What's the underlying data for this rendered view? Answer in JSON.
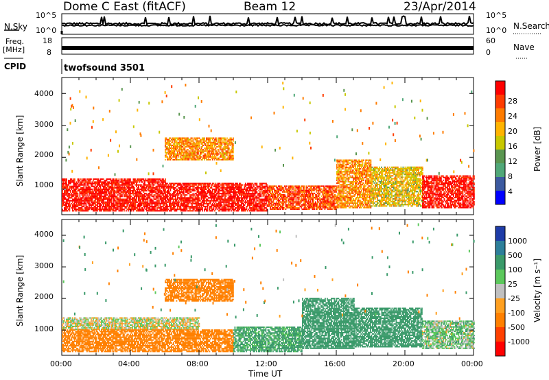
{
  "header": {
    "station": "Dome C East (fitACF)",
    "beam": "Beam 12",
    "date": "23/Apr/2014"
  },
  "strips": {
    "nsky_label": "N.Sky",
    "nsky_ticks": [
      "10^5",
      "10^0"
    ],
    "nsearch_label": "N.Search",
    "nsearch_ticks": [
      "10^5",
      "10^0"
    ],
    "freq_label": "Freq.",
    "freq_unit": "[MHz]",
    "freq_ticks": [
      "18",
      "8"
    ],
    "nave_label": "Nave",
    "nave_ticks": [
      "60",
      "0"
    ],
    "cpid_label": "CPID",
    "cpid_value": "twofsound 3501"
  },
  "power_colorbar": {
    "title": "Power [dB]",
    "ticks": [
      "28",
      "24",
      "20",
      "16",
      "12",
      "8",
      "4"
    ],
    "colors": [
      "#ff0000",
      "#ff3c00",
      "#ff7c00",
      "#ffb400",
      "#c8c800",
      "#5a9650",
      "#50a878",
      "#3c5aa0",
      "#0000ff"
    ]
  },
  "velocity_colorbar": {
    "title": "Velocity [m s⁻¹]",
    "ticks": [
      "1000",
      "500",
      "100",
      "25",
      "-25",
      "-100",
      "-500",
      "-1000"
    ],
    "colors": [
      "#1e3ca8",
      "#2d7f9a",
      "#3a9a6a",
      "#5cc85c",
      "#c0c0c0",
      "#ffa020",
      "#ff8000",
      "#ff4000",
      "#ff0000"
    ]
  },
  "chart_data": [
    {
      "type": "heatmap",
      "panel": "power",
      "ylabel": "Slant Range [km]",
      "xlabel": "Time UT",
      "ylim": [
        200,
        4500
      ],
      "xlim": [
        0,
        24
      ],
      "yticks": [
        "1000",
        "2000",
        "3000",
        "4000"
      ],
      "xticks": [
        "00:00",
        "04:00",
        "08:00",
        "12:00",
        "16:00",
        "20:00",
        "00:00"
      ],
      "colorbar": "Power [dB]",
      "bands": [
        {
          "t0": 0,
          "t1": 6,
          "r0": 300,
          "r1": 1300,
          "value": 28
        },
        {
          "t0": 6,
          "t1": 12,
          "r0": 300,
          "r1": 1200,
          "value": 28
        },
        {
          "t0": 12,
          "t1": 16,
          "r0": 350,
          "r1": 1100,
          "value": 24
        },
        {
          "t0": 16,
          "t1": 18,
          "r0": 400,
          "r1": 1900,
          "value": 20
        },
        {
          "t0": 18,
          "t1": 21,
          "r0": 450,
          "r1": 1700,
          "value": 16
        },
        {
          "t0": 21,
          "t1": 24,
          "r0": 400,
          "r1": 1400,
          "value": 28
        },
        {
          "t0": 6,
          "t1": 10,
          "r0": 1900,
          "r1": 2600,
          "value": 20
        }
      ]
    },
    {
      "type": "heatmap",
      "panel": "velocity",
      "ylabel": "Slant Range [km]",
      "xlabel": "Time UT",
      "ylim": [
        200,
        4500
      ],
      "xlim": [
        0,
        24
      ],
      "yticks": [
        "1000",
        "2000",
        "3000",
        "4000"
      ],
      "xticks": [
        "00:00",
        "04:00",
        "08:00",
        "12:00",
        "16:00",
        "20:00",
        "00:00"
      ],
      "colorbar": "Velocity [m s⁻¹]",
      "bands": [
        {
          "t0": 0,
          "t1": 8,
          "r0": 1000,
          "r1": 1400,
          "value": 0
        },
        {
          "t0": 0,
          "t1": 10,
          "r0": 300,
          "r1": 1000,
          "value": -300
        },
        {
          "t0": 10,
          "t1": 14,
          "r0": 300,
          "r1": 1100,
          "value": 150
        },
        {
          "t0": 14,
          "t1": 17,
          "r0": 400,
          "r1": 2000,
          "value": 400
        },
        {
          "t0": 17,
          "t1": 21,
          "r0": 450,
          "r1": 1700,
          "value": 200
        },
        {
          "t0": 21,
          "t1": 24,
          "r0": 400,
          "r1": 1300,
          "value": 60
        },
        {
          "t0": 6,
          "t1": 10,
          "r0": 1900,
          "r1": 2600,
          "value": -200
        }
      ]
    }
  ]
}
